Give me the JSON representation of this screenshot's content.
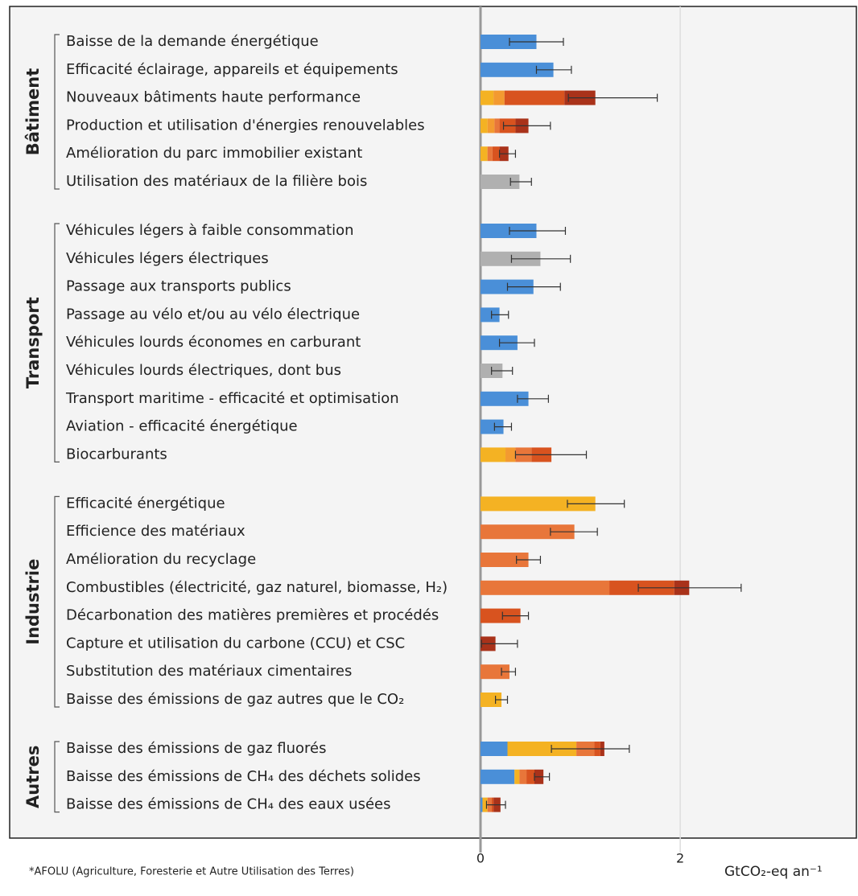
{
  "chart_data": {
    "type": "stacked-bar-horizontal",
    "groups": [
      {
        "name": "Bâtiment",
        "categories": [
          "Baisse de la demande énergétique",
          "Efficacité éclairage, appareils et équipements",
          "Nouveaux bâtiments haute performance",
          "Production et utilisation d'énergies renouvelables",
          "Amélioration du parc immobilier existant",
          "Utilisation des matériaux de la filière bois"
        ]
      },
      {
        "name": "Transport",
        "categories": [
          "Véhicules légers à faible consommation",
          "Véhicules légers électriques",
          "Passage aux transports publics",
          "Passage au vélo et/ou au vélo électrique",
          "Véhicules lourds économes en carburant",
          "Véhicules lourds électriques, dont bus",
          "Transport maritime - efficacité et optimisation",
          "Aviation - efficacité énergétique",
          "Biocarburants"
        ]
      },
      {
        "name": "Industrie",
        "categories": [
          "Efficacité énergétique",
          "Efficience des matériaux",
          "Amélioration du recyclage",
          "Combustibles (électricité, gaz naturel, biomasse, H₂)",
          "Décarbonation des matières premières et procédés",
          "Capture et utilisation du carbone (CCU) et CSC",
          "Substitution des matériaux cimentaires",
          "Baisse des émissions de gaz autres que le CO₂"
        ]
      },
      {
        "name": "Autres",
        "categories": [
          "Baisse des émissions de gaz fluorés",
          "Baisse des émissions de CH₄ des déchets solides",
          "Baisse des émissions de CH₄ des eaux usées"
        ]
      }
    ],
    "series": [
      {
        "color": "#4a8fd8",
        "values": [
          0.56,
          0.73,
          null,
          null,
          null,
          null,
          0.56,
          null,
          0.53,
          0.19,
          0.37,
          null,
          0.48,
          0.23,
          null,
          null,
          null,
          null,
          null,
          null,
          null,
          null,
          null,
          0.27,
          0.34,
          0.02
        ]
      },
      {
        "color": "#b0b0b0",
        "values": [
          null,
          null,
          null,
          null,
          null,
          0.39,
          null,
          0.6,
          null,
          null,
          null,
          0.22,
          null,
          null,
          null,
          null,
          null,
          null,
          null,
          null,
          null,
          null,
          null,
          null,
          null,
          null
        ]
      },
      {
        "color": "#f4b223",
        "values": [
          null,
          null,
          0.13,
          0.07,
          0.07,
          null,
          null,
          null,
          null,
          null,
          null,
          null,
          null,
          null,
          0.25,
          1.15,
          null,
          null,
          null,
          null,
          null,
          null,
          0.21,
          0.69,
          0.05,
          0.05
        ]
      },
      {
        "color": "#f39a30",
        "values": [
          null,
          null,
          0.11,
          0.07,
          null,
          null,
          null,
          null,
          null,
          null,
          null,
          null,
          null,
          null,
          0.1,
          null,
          null,
          null,
          null,
          null,
          null,
          null,
          null,
          null,
          null,
          null
        ]
      },
      {
        "color": "#e8763a",
        "values": [
          null,
          null,
          null,
          0.05,
          0.05,
          null,
          null,
          null,
          null,
          null,
          null,
          null,
          null,
          null,
          0.16,
          null,
          0.94,
          0.48,
          1.29,
          null,
          null,
          0.29,
          null,
          0.18,
          0.07,
          0.04
        ]
      },
      {
        "color": "#d8531f",
        "values": [
          null,
          null,
          0.6,
          0.16,
          0.07,
          null,
          null,
          null,
          null,
          null,
          null,
          null,
          null,
          null,
          0.2,
          null,
          null,
          null,
          0.65,
          0.4,
          null,
          null,
          null,
          0.06,
          0.08,
          0.02
        ]
      },
      {
        "color": "#a9321a",
        "values": [
          null,
          null,
          0.31,
          0.13,
          0.09,
          null,
          null,
          null,
          null,
          null,
          null,
          null,
          null,
          null,
          null,
          null,
          null,
          null,
          0.15,
          null,
          0.15,
          null,
          null,
          0.04,
          0.09,
          0.07
        ]
      }
    ],
    "error_low": [
      0.29,
      0.56,
      0.88,
      0.23,
      0.19,
      0.3,
      0.29,
      0.31,
      0.27,
      0.11,
      0.19,
      0.11,
      0.37,
      0.14,
      0.35,
      0.87,
      0.7,
      0.36,
      1.58,
      0.22,
      0.01,
      0.21,
      0.15,
      0.71,
      0.54,
      0.06
    ],
    "error_high": [
      0.83,
      0.91,
      1.77,
      0.7,
      0.35,
      0.51,
      0.85,
      0.9,
      0.8,
      0.28,
      0.54,
      0.32,
      0.68,
      0.31,
      1.06,
      1.44,
      1.17,
      0.6,
      2.61,
      0.48,
      0.37,
      0.35,
      0.27,
      1.49,
      0.69,
      0.25
    ],
    "xlim": [
      0,
      3.78
    ],
    "xticks": [
      0,
      2
    ],
    "grid": true,
    "xlabel": "GtCO₂-eq an⁻¹",
    "footnote": "*AFOLU (Agriculture, Foresterie et Autre Utilisation des Terres)"
  }
}
